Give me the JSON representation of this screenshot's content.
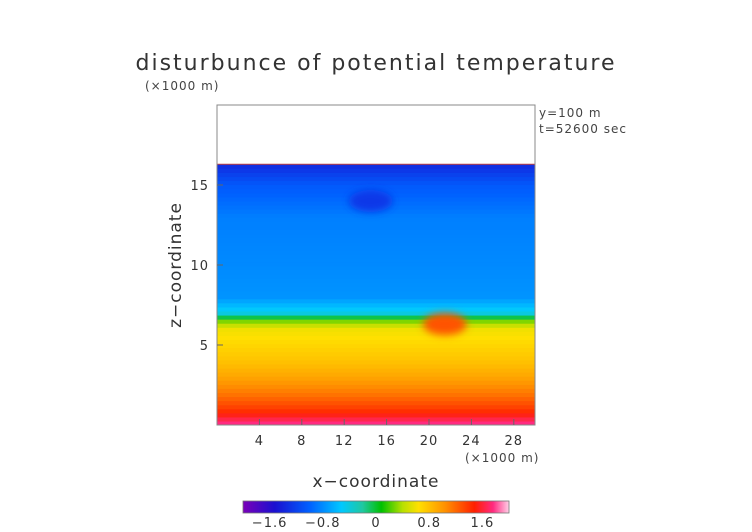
{
  "chart_data": {
    "type": "heatmap",
    "title": "disturbunce of potential temperature",
    "xlabel": "x−coordinate",
    "ylabel": "z−coordinate",
    "x_unit": "(×1000 m)",
    "z_unit": "(×1000 m)",
    "annotations": [
      "y=100 m",
      "t=52600 sec"
    ],
    "xlim": [
      0,
      30
    ],
    "ylim": [
      0,
      20
    ],
    "x_ticks": [
      4,
      8,
      12,
      16,
      20,
      24,
      28
    ],
    "y_ticks": [
      5,
      10,
      15
    ],
    "top_boundary_z": 16.3,
    "colorbar": {
      "range": [
        -2.0,
        2.0
      ],
      "ticks": [
        -1.6,
        -0.8,
        0,
        0.8,
        1.6
      ],
      "tick_labels": [
        "−1.6",
        "−0.8",
        "0",
        "0.8",
        "1.6"
      ]
    },
    "field_profile": {
      "z": [
        0,
        1,
        2,
        3,
        4,
        5,
        6,
        6.5,
        7,
        8,
        10,
        13,
        15,
        16.3
      ],
      "value": [
        1.8,
        1.4,
        1.15,
        0.95,
        0.8,
        0.7,
        0.6,
        0.3,
        -0.4,
        -0.75,
        -0.8,
        -0.85,
        -1.05,
        -1.4
      ]
    },
    "features": [
      {
        "label": "warm anomaly",
        "x": 21.5,
        "z": 6.3,
        "value": 1.3
      },
      {
        "label": "cold anomaly",
        "x": 14.5,
        "z": 14.0,
        "value": -1.3
      }
    ]
  }
}
